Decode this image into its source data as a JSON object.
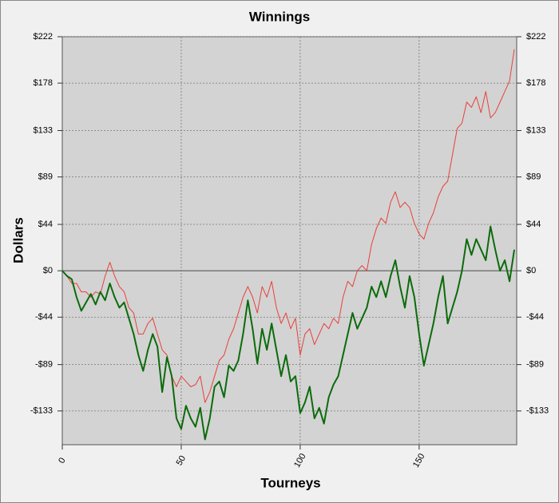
{
  "chart_data": {
    "type": "line",
    "title": "Winnings",
    "x_label": "Tourneys",
    "y_label": "Dollars",
    "x": [
      0,
      2,
      4,
      6,
      8,
      10,
      12,
      14,
      16,
      18,
      20,
      22,
      24,
      26,
      28,
      30,
      32,
      34,
      36,
      38,
      40,
      42,
      44,
      46,
      48,
      50,
      52,
      54,
      56,
      58,
      60,
      62,
      64,
      66,
      68,
      70,
      72,
      74,
      76,
      78,
      80,
      82,
      84,
      86,
      88,
      90,
      92,
      94,
      96,
      98,
      100,
      102,
      104,
      106,
      108,
      110,
      112,
      114,
      116,
      118,
      120,
      122,
      124,
      126,
      128,
      130,
      132,
      134,
      136,
      138,
      140,
      142,
      144,
      146,
      148,
      150,
      152,
      154,
      156,
      158,
      160,
      162,
      164,
      166,
      168,
      170,
      172,
      174,
      176,
      178,
      180,
      182,
      184,
      186,
      188,
      190
    ],
    "series": [
      {
        "color": "#e8403a",
        "width": 1,
        "values": [
          0,
          -5,
          -12,
          -12,
          -20,
          -20,
          -25,
          -20,
          -22,
          -5,
          8,
          -5,
          -15,
          -20,
          -35,
          -40,
          -60,
          -60,
          -50,
          -45,
          -60,
          -75,
          -80,
          -100,
          -110,
          -100,
          -105,
          -110,
          -108,
          -100,
          -125,
          -115,
          -100,
          -85,
          -80,
          -65,
          -55,
          -40,
          -25,
          -15,
          -25,
          -40,
          -15,
          -25,
          -10,
          -35,
          -50,
          -40,
          -55,
          -45,
          -80,
          -60,
          -55,
          -70,
          -60,
          -50,
          -55,
          -45,
          -50,
          -25,
          -10,
          -15,
          0,
          5,
          0,
          25,
          40,
          50,
          45,
          65,
          75,
          60,
          65,
          60,
          45,
          35,
          30,
          45,
          55,
          70,
          80,
          85,
          110,
          135,
          140,
          160,
          155,
          165,
          150,
          170,
          145,
          150,
          160,
          170,
          180,
          210
        ]
      },
      {
        "color": "#0b6b0b",
        "width": 2,
        "values": [
          0,
          -5,
          -8,
          -25,
          -38,
          -30,
          -22,
          -32,
          -20,
          -28,
          -12,
          -25,
          -35,
          -30,
          -45,
          -60,
          -80,
          -95,
          -75,
          -60,
          -72,
          -115,
          -82,
          -100,
          -140,
          -150,
          -128,
          -140,
          -148,
          -130,
          -160,
          -140,
          -110,
          -105,
          -120,
          -90,
          -95,
          -85,
          -60,
          -28,
          -55,
          -88,
          -55,
          -75,
          -50,
          -75,
          -100,
          -80,
          -105,
          -100,
          -135,
          -125,
          -110,
          -140,
          -130,
          -145,
          -120,
          -108,
          -100,
          -80,
          -60,
          -40,
          -55,
          -45,
          -35,
          -15,
          -25,
          -10,
          -25,
          -5,
          10,
          -15,
          -35,
          -5,
          -25,
          -60,
          -90,
          -70,
          -50,
          -25,
          -5,
          -50,
          -35,
          -20,
          0,
          30,
          15,
          30,
          20,
          10,
          42,
          20,
          0,
          10,
          -10,
          20
        ]
      }
    ],
    "xlim": [
      0,
      191
    ],
    "xticks": [
      0,
      50,
      100,
      150
    ],
    "ylim": [
      -165,
      222
    ],
    "yticks": [
      {
        "value": 222,
        "label": "$222"
      },
      {
        "value": 178,
        "label": "$178"
      },
      {
        "value": 133,
        "label": "$133"
      },
      {
        "value": 89,
        "label": "$89"
      },
      {
        "value": 44,
        "label": "$44"
      },
      {
        "value": 0,
        "label": "$0"
      },
      {
        "value": -44,
        "label": "-$44"
      },
      {
        "value": -89,
        "label": "-$89"
      },
      {
        "value": -133,
        "label": "-$133"
      }
    ],
    "grid": true
  }
}
